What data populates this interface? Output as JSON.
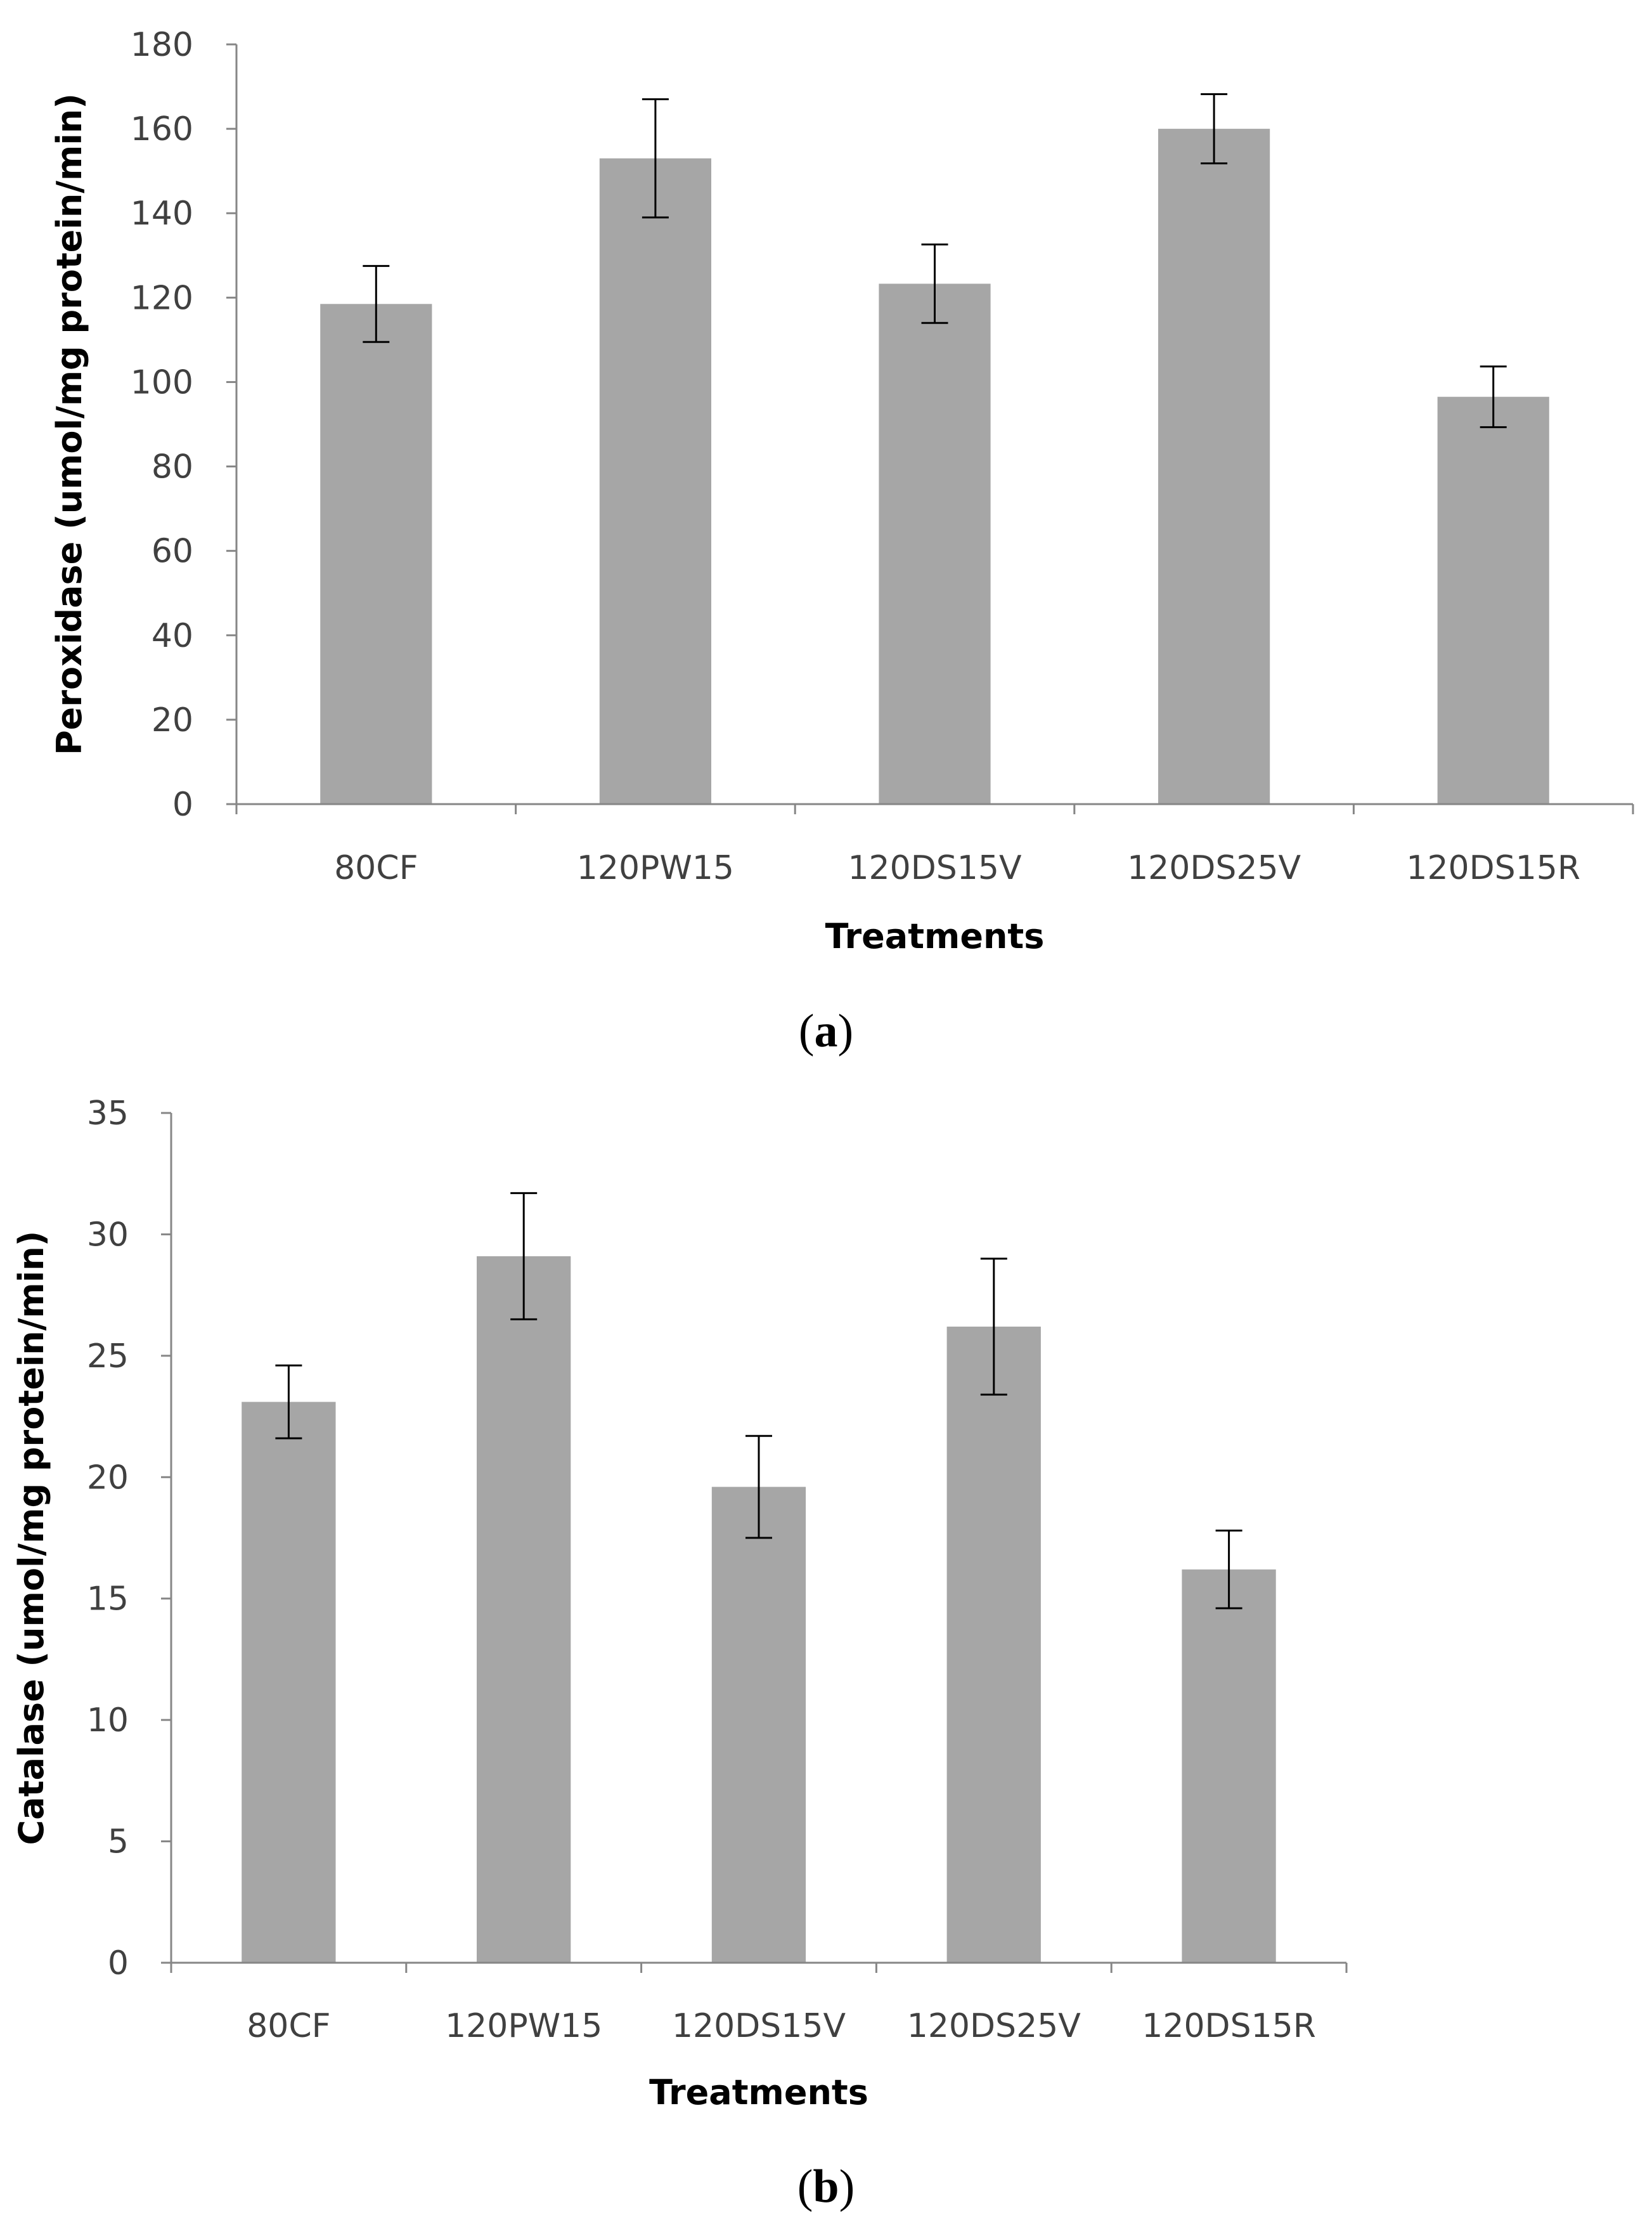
{
  "figure": {
    "bar_color": "#a6a6a6",
    "axis_color": "#868686",
    "errorbar_color": "#000000"
  },
  "chart_data": [
    {
      "type": "bar",
      "panel": "(a)",
      "panel_letter": "a",
      "title": "",
      "categories": [
        "80CF",
        "120PW15",
        "120DS15V",
        "120DS25V",
        "120DS15R"
      ],
      "series": [
        {
          "name": "Peroxidase",
          "values": [
            118.5,
            153,
            123.3,
            160,
            96.5
          ],
          "errors": [
            9,
            14,
            9.3,
            8.2,
            7.2
          ]
        }
      ],
      "xlabel": "Treatments",
      "ylabel": "Peroxidase (umol/mg protein/min)",
      "ylim": [
        0,
        180
      ],
      "yticks": [
        0,
        20,
        40,
        60,
        80,
        100,
        120,
        140,
        160,
        180
      ],
      "grid": false
    },
    {
      "type": "bar",
      "panel": "(b)",
      "panel_letter": "b",
      "title": "",
      "categories": [
        "80CF",
        "120PW15",
        "120DS15V",
        "120DS25V",
        "120DS15R"
      ],
      "series": [
        {
          "name": "Catalase",
          "values": [
            23.1,
            29.1,
            19.6,
            26.2,
            16.2
          ],
          "errors": [
            1.5,
            2.6,
            2.1,
            2.8,
            1.6
          ]
        }
      ],
      "xlabel": "Treatments",
      "ylabel": "Catalase (umol/mg protein/min)",
      "ylim": [
        0,
        35
      ],
      "yticks": [
        0,
        5,
        10,
        15,
        20,
        25,
        30,
        35
      ],
      "grid": false
    }
  ]
}
